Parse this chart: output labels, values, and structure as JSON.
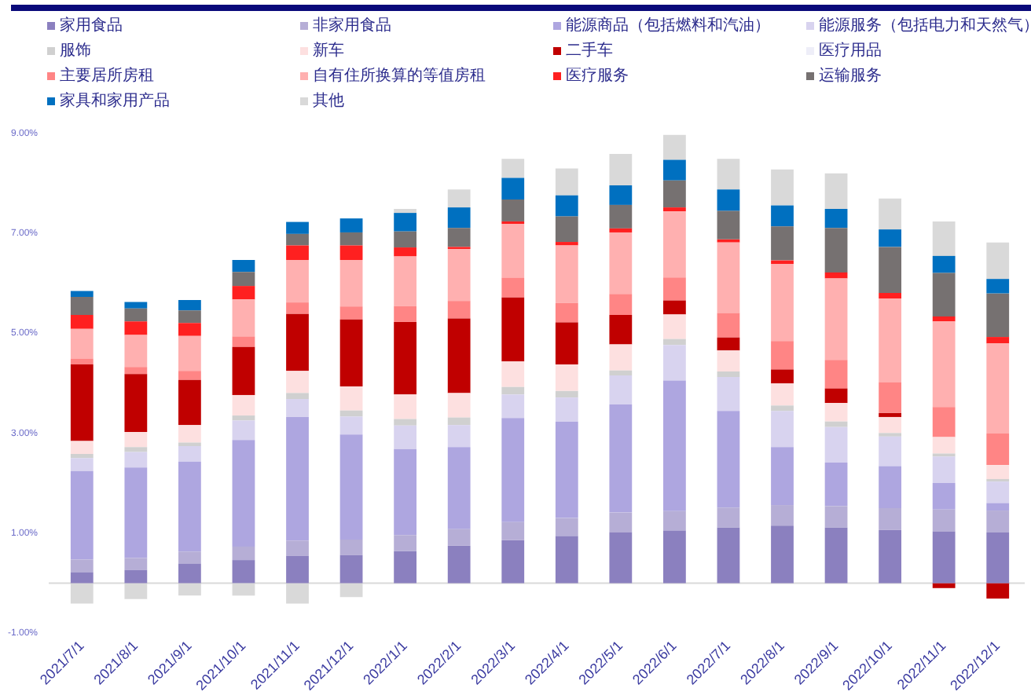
{
  "chart_data": {
    "type": "bar",
    "stacked": true,
    "legend": "top",
    "grid": false,
    "categories": [
      "2021/7/1",
      "2021/8/1",
      "2021/9/1",
      "2021/10/1",
      "2021/11/1",
      "2021/12/1",
      "2022/1/1",
      "2022/2/1",
      "2022/3/1",
      "2022/4/1",
      "2022/5/1",
      "2022/6/1",
      "2022/7/1",
      "2022/8/1",
      "2022/9/1",
      "2022/10/1",
      "2022/11/1",
      "2022/12/1"
    ],
    "ylim": [
      -1,
      9
    ],
    "yticks": [
      {
        "value": -1,
        "label": "-1.00%"
      },
      {
        "value": 1,
        "label": "1.00%"
      },
      {
        "value": 3,
        "label": "3.00%"
      },
      {
        "value": 5,
        "label": "5.00%"
      },
      {
        "value": 7,
        "label": "7.00%"
      },
      {
        "value": 9,
        "label": "9.00%"
      }
    ],
    "ref_lines": [
      {
        "axis": "y",
        "value": 0,
        "color": "#d9d9d9"
      }
    ],
    "series": [
      {
        "name": "家用食品",
        "color": "#8b80bf",
        "values": [
          0.22,
          0.26,
          0.39,
          0.46,
          0.55,
          0.56,
          0.64,
          0.75,
          0.86,
          0.94,
          1.02,
          1.05,
          1.11,
          1.15,
          1.11,
          1.06,
          1.03,
          1.01
        ]
      },
      {
        "name": "非家用食品",
        "color": "#b6aed6",
        "values": [
          0.25,
          0.24,
          0.24,
          0.27,
          0.3,
          0.31,
          0.32,
          0.33,
          0.36,
          0.36,
          0.39,
          0.39,
          0.4,
          0.41,
          0.43,
          0.44,
          0.44,
          0.44
        ]
      },
      {
        "name": "能源商品（包括燃料和汽油）",
        "color": "#aea6e0",
        "values": [
          1.77,
          1.81,
          1.8,
          2.13,
          2.47,
          2.1,
          1.72,
          1.64,
          2.08,
          1.93,
          2.16,
          2.61,
          1.93,
          1.16,
          0.87,
          0.84,
          0.53,
          0.15
        ]
      },
      {
        "name": "能源服务（包括电力和天然气）",
        "color": "#d8d3ef",
        "values": [
          0.26,
          0.31,
          0.31,
          0.39,
          0.36,
          0.36,
          0.47,
          0.44,
          0.47,
          0.48,
          0.58,
          0.71,
          0.68,
          0.72,
          0.71,
          0.59,
          0.53,
          0.43
        ]
      },
      {
        "name": "服饰",
        "color": "#d0d0d0",
        "values": [
          0.08,
          0.1,
          0.07,
          0.1,
          0.12,
          0.12,
          0.13,
          0.15,
          0.15,
          0.13,
          0.1,
          0.12,
          0.11,
          0.11,
          0.11,
          0.07,
          0.06,
          0.05
        ]
      },
      {
        "name": "新车",
        "color": "#fde0e0",
        "values": [
          0.26,
          0.3,
          0.35,
          0.41,
          0.44,
          0.48,
          0.49,
          0.49,
          0.51,
          0.53,
          0.52,
          0.49,
          0.42,
          0.44,
          0.37,
          0.32,
          0.33,
          0.28
        ]
      },
      {
        "name": "二手车",
        "color": "#c00000",
        "values": [
          1.53,
          1.16,
          0.9,
          0.96,
          1.14,
          1.34,
          1.45,
          1.49,
          1.28,
          0.84,
          0.59,
          0.28,
          0.26,
          0.28,
          0.29,
          0.08,
          -0.1,
          -0.31
        ]
      },
      {
        "name": "医疗用品",
        "color": "#eeeef8",
        "values": [
          null,
          null,
          null,
          null,
          null,
          null,
          null,
          null,
          null,
          null,
          null,
          null,
          null,
          null,
          null,
          null,
          null,
          null
        ]
      },
      {
        "name": "主要居所房租",
        "color": "#ff8585",
        "values": [
          0.12,
          0.14,
          0.18,
          0.21,
          0.23,
          0.26,
          0.32,
          0.35,
          0.39,
          0.39,
          0.42,
          0.46,
          0.49,
          0.57,
          0.57,
          0.62,
          0.6,
          0.63
        ]
      },
      {
        "name": "自有住所换算的等值房租",
        "color": "#ffb0b0",
        "values": [
          0.59,
          0.64,
          0.7,
          0.74,
          0.85,
          0.93,
          0.99,
          1.04,
          1.08,
          1.15,
          1.23,
          1.32,
          1.41,
          1.54,
          1.63,
          1.67,
          1.71,
          1.8
        ]
      },
      {
        "name": "医疗服务",
        "color": "#ff2020",
        "values": [
          0.28,
          0.27,
          0.26,
          0.27,
          0.29,
          0.29,
          0.18,
          0.04,
          0.05,
          0.07,
          0.08,
          0.08,
          0.06,
          0.07,
          0.12,
          0.11,
          0.1,
          0.13
        ]
      },
      {
        "name": "运输服务",
        "color": "#767171",
        "values": [
          0.36,
          0.26,
          0.25,
          0.28,
          0.23,
          0.26,
          0.32,
          0.38,
          0.44,
          0.51,
          0.47,
          0.54,
          0.57,
          0.68,
          0.89,
          0.92,
          0.87,
          0.87
        ]
      },
      {
        "name": "家具和家用产品",
        "color": "#0070c0",
        "values": [
          0.12,
          0.13,
          0.21,
          0.24,
          0.24,
          0.28,
          0.37,
          0.41,
          0.43,
          0.42,
          0.39,
          0.41,
          0.43,
          0.42,
          0.38,
          0.35,
          0.34,
          0.29
        ]
      },
      {
        "name": "其他",
        "color": "#d9d9d9",
        "values": [
          -0.41,
          -0.32,
          -0.25,
          -0.25,
          -0.41,
          -0.28,
          0.08,
          0.36,
          0.38,
          0.54,
          0.63,
          0.5,
          0.61,
          0.72,
          0.71,
          0.62,
          0.69,
          0.73
        ]
      }
    ]
  }
}
